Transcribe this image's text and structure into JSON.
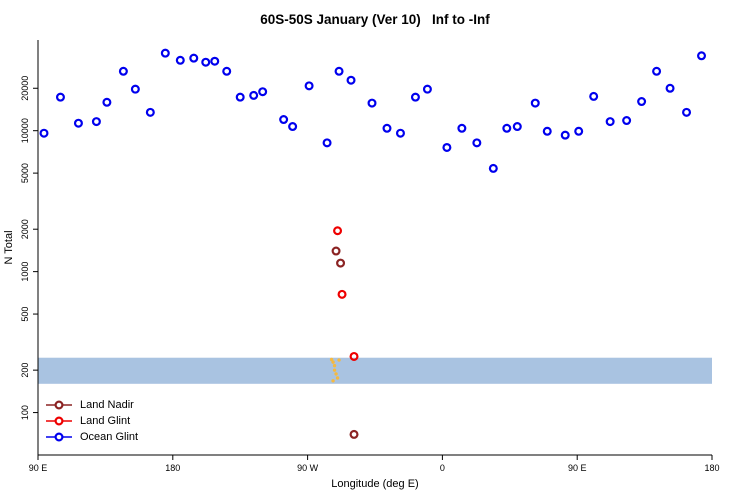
{
  "title": "60S-50S January (Ver 10)   Inf to -Inf",
  "chart_data": {
    "type": "scatter",
    "title": "60S-50S January (Ver 10)   Inf to -Inf",
    "xlabel": "Longitude (deg E)",
    "ylabel": "N Total",
    "x_axis": {
      "range": [
        90,
        540
      ],
      "ticks": [
        {
          "pos": 90,
          "label": "90 E"
        },
        {
          "pos": 180,
          "label": "180"
        },
        {
          "pos": 270,
          "label": "90 W"
        },
        {
          "pos": 360,
          "label": "0"
        },
        {
          "pos": 450,
          "label": "90 E"
        },
        {
          "pos": 540,
          "label": "180"
        }
      ]
    },
    "y_axis": {
      "scale": "log",
      "range": [
        50,
        44000
      ],
      "ticks": [
        100,
        200,
        500,
        1000,
        2000,
        5000,
        10000,
        20000
      ]
    },
    "band": {
      "y_from": 160,
      "y_to": 245,
      "color": "#a9c3e1"
    },
    "series": [
      {
        "name": "Land Nadir",
        "color": "#8b2323",
        "marker": "open-circle",
        "points": [
          [
            289,
            1400
          ],
          [
            292,
            1150
          ],
          [
            301,
            70
          ]
        ]
      },
      {
        "name": "Land Glint",
        "color": "#ee0000",
        "marker": "open-circle",
        "points": [
          [
            290,
            1950
          ],
          [
            293,
            690
          ],
          [
            301,
            250
          ]
        ]
      },
      {
        "name": "Ocean Glint",
        "color": "#0000ee",
        "marker": "open-circle",
        "points": [
          [
            94,
            9600
          ],
          [
            105,
            17300
          ],
          [
            117,
            11300
          ],
          [
            129,
            11600
          ],
          [
            136,
            15900
          ],
          [
            147,
            26400
          ],
          [
            155,
            19700
          ],
          [
            165,
            13500
          ],
          [
            175,
            35500
          ],
          [
            185,
            31600
          ],
          [
            194,
            32700
          ],
          [
            202,
            30600
          ],
          [
            208,
            31100
          ],
          [
            216,
            26400
          ],
          [
            225,
            17300
          ],
          [
            234,
            17800
          ],
          [
            240,
            18900
          ],
          [
            254,
            12000
          ],
          [
            260,
            10700
          ],
          [
            271,
            20800
          ],
          [
            283,
            8200
          ],
          [
            291,
            26400
          ],
          [
            299,
            22800
          ],
          [
            313,
            15700
          ],
          [
            323,
            10400
          ],
          [
            332,
            9600
          ],
          [
            342,
            17300
          ],
          [
            350,
            19700
          ],
          [
            363,
            7600
          ],
          [
            373,
            10400
          ],
          [
            383,
            8200
          ],
          [
            394,
            5400
          ],
          [
            403,
            10400
          ],
          [
            410,
            10700
          ],
          [
            422,
            15700
          ],
          [
            430,
            9900
          ],
          [
            442,
            9300
          ],
          [
            451,
            9900
          ],
          [
            461,
            17500
          ],
          [
            472,
            11600
          ],
          [
            483,
            11800
          ],
          [
            493,
            16100
          ],
          [
            503,
            26400
          ],
          [
            512,
            20000
          ],
          [
            523,
            13500
          ],
          [
            533,
            34000
          ]
        ]
      },
      {
        "name": "orange-streak",
        "color": "#f4b942",
        "marker": "dot",
        "points": [
          [
            286,
            238
          ],
          [
            287,
            228
          ],
          [
            288,
            215
          ],
          [
            288,
            200
          ],
          [
            289,
            188
          ],
          [
            290,
            176
          ],
          [
            287,
            168
          ],
          [
            291,
            236
          ]
        ]
      }
    ],
    "legend": {
      "position": "bottom-left",
      "entries": [
        "Land Nadir",
        "Land Glint",
        "Ocean Glint"
      ]
    }
  }
}
